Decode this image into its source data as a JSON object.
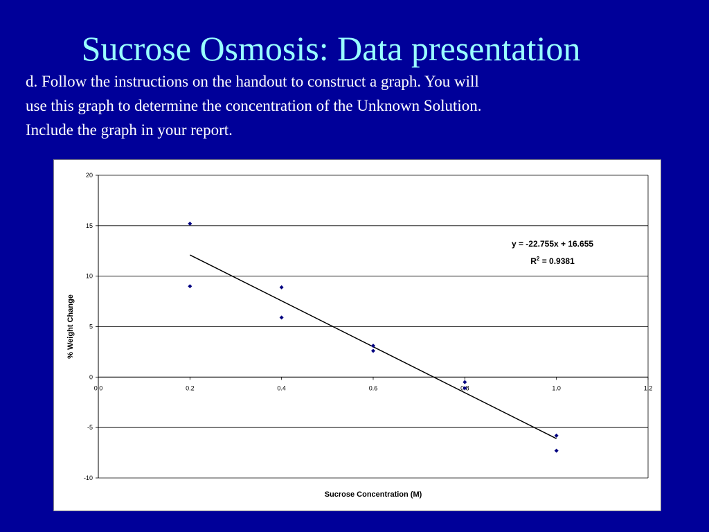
{
  "slide": {
    "title": "Sucrose Osmosis: Data presentation",
    "body_lines": [
      "d. Follow the instructions on the handout to construct a graph.  You will",
      "use this graph to determine the concentration of the Unknown Solution.",
      "Include the graph in your report."
    ]
  },
  "colors": {
    "background": "#000099",
    "title": "#99ffff",
    "body_text": "#ffffff",
    "marker": "#000080",
    "trendline": "#000000"
  },
  "chart_data": {
    "type": "scatter",
    "title": "",
    "xlabel": "Sucrose Concentration (M)",
    "ylabel": "% Weight Change",
    "xlim": [
      0,
      1.2
    ],
    "ylim": [
      -10,
      20
    ],
    "x_ticks": [
      "0.0",
      "0.2",
      "0.4",
      "0.6",
      "0.8",
      "1.0",
      "1.2"
    ],
    "y_ticks": [
      "20",
      "15",
      "10",
      "5",
      "0",
      "-5",
      "-10"
    ],
    "grid": "horizontal",
    "series": [
      {
        "marker": "diamond",
        "points": [
          {
            "x": 0.2,
            "y": 15.2
          },
          {
            "x": 0.2,
            "y": 9.0
          },
          {
            "x": 0.4,
            "y": 8.9
          },
          {
            "x": 0.4,
            "y": 5.9
          },
          {
            "x": 0.6,
            "y": 3.1
          },
          {
            "x": 0.6,
            "y": 2.6
          },
          {
            "x": 0.8,
            "y": -0.5
          },
          {
            "x": 0.8,
            "y": -1.1
          },
          {
            "x": 1.0,
            "y": -5.8
          },
          {
            "x": 1.0,
            "y": -7.3
          }
        ]
      }
    ],
    "trendline": {
      "slope": -22.755,
      "intercept": 16.655,
      "x_range": [
        0.2,
        1.0
      ],
      "equation_text": "y = -22.755x + 16.655",
      "r2_prefix": "R",
      "r2_superscript": "2",
      "r2_suffix": " = 0.9381"
    }
  }
}
